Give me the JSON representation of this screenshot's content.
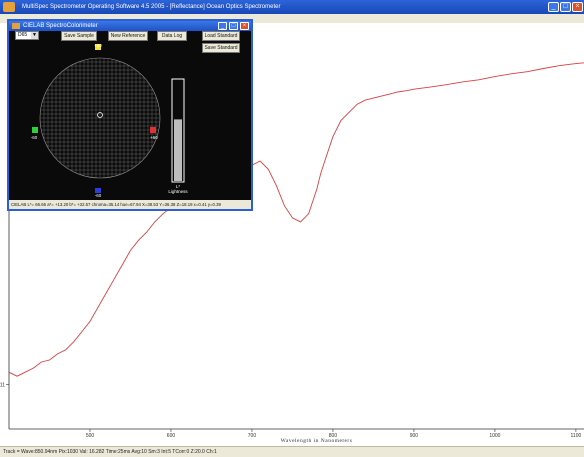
{
  "main_window": {
    "title": "MultiSpec Spectrometer Operating Software 4.5 2005 - [Reflectance] Ocean Optics Spectrometer",
    "min_icon": "_",
    "max_icon": "□",
    "close_icon": "×"
  },
  "colorimeter": {
    "title": "CIELAB SpectroColorimeter",
    "illuminant": "D65",
    "buttons": {
      "save_sample": "Save Sample",
      "new_reference": "New Reference",
      "data_log": "Data Log",
      "load_standard": "Load Standard",
      "save_standard": "Save Standard"
    },
    "axis_labels": {
      "top_value": "+60",
      "bottom_value": "-60",
      "left_value": "-60",
      "right_value": "+60"
    },
    "lightness_label": "L*",
    "lightness_caption": "Lightness",
    "lightness_fraction": 0.61,
    "status": "CIELAB L*= 66.66  a*= +13.20  b*= +32.57  chroma=35.14  hue=67.94  X=38.53  Y=36.38  Z=18.19  x=0.41  y=0.39"
  },
  "status_bar": "Track = Wave:850.94nm  Pix:1030  Val: 16.282  Time:25ms  Avg:10  Sm:3  Int:5  TCorr:0  Z:20.0  Ch:1",
  "chart_data": {
    "type": "line",
    "xlabel": "Wavelength in Nanometers",
    "ylabel": "",
    "x_ticks": [
      "500",
      "600",
      "700",
      "800",
      "900",
      "1000",
      "1100"
    ],
    "y_ticks": [
      "11"
    ],
    "xlim": [
      400,
      1110
    ],
    "ylim": [
      0,
      100
    ],
    "series_color": "#d94040",
    "series": [
      {
        "x": [
          400,
          405,
          410,
          420,
          430,
          440,
          450,
          460,
          470,
          480,
          490,
          500,
          510,
          520,
          530,
          540,
          550,
          560,
          570,
          580,
          590,
          600,
          610,
          620,
          630,
          640,
          650,
          660,
          670,
          680,
          690,
          700,
          710,
          720,
          730,
          740,
          750,
          760,
          770,
          780,
          785,
          790,
          800,
          810,
          820,
          830,
          840,
          850,
          860,
          870,
          880,
          890,
          900,
          920,
          940,
          960,
          980,
          1000,
          1020,
          1040,
          1060,
          1080,
          1100,
          1110
        ],
        "y": [
          14,
          13.5,
          13,
          14,
          15,
          16.5,
          17,
          18.5,
          19.5,
          21.5,
          24,
          26.5,
          30,
          33.5,
          37,
          40.5,
          44,
          46.5,
          48.5,
          51,
          53,
          54.5,
          56.5,
          58,
          60.5,
          62.5,
          64,
          65,
          65.5,
          66,
          65.5,
          65,
          66,
          64,
          60,
          55,
          52,
          51,
          53,
          59,
          63,
          66,
          72,
          76,
          78,
          80,
          81,
          81.5,
          82,
          82.5,
          83,
          83.3,
          83.7,
          84.2,
          84.8,
          85.5,
          86,
          86.8,
          87.5,
          88,
          88.8,
          89.5,
          90,
          90.2
        ]
      }
    ]
  }
}
